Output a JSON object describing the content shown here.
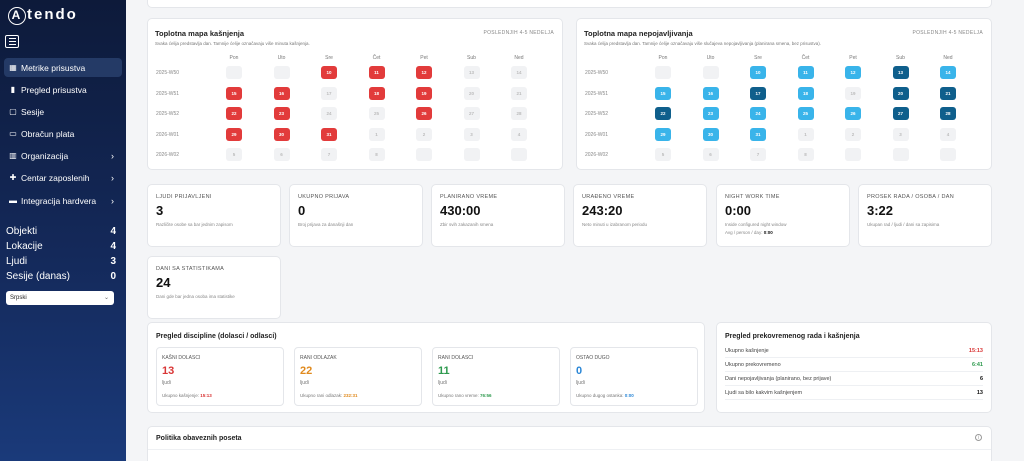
{
  "app": {
    "logo_text": "tendo",
    "logo_initial": "A"
  },
  "sidebar": {
    "items": [
      {
        "label": "Metrike prisustva",
        "icon": "calendar-icon",
        "glyph": "▦",
        "active": true,
        "chevron": false
      },
      {
        "label": "Pregled prisustva",
        "icon": "bar-chart-icon",
        "glyph": "▮",
        "active": false,
        "chevron": false
      },
      {
        "label": "Sesije",
        "icon": "calendar-icon",
        "glyph": "▢",
        "active": false,
        "chevron": false
      },
      {
        "label": "Obračun plata",
        "icon": "monitor-icon",
        "glyph": "▭",
        "active": false,
        "chevron": false
      },
      {
        "label": "Organizacija",
        "icon": "building-icon",
        "glyph": "▥",
        "active": false,
        "chevron": true
      },
      {
        "label": "Centar zaposlenih",
        "icon": "people-icon",
        "glyph": "✚",
        "active": false,
        "chevron": true
      },
      {
        "label": "Integracija hardvera",
        "icon": "hardware-icon",
        "glyph": "▬",
        "active": false,
        "chevron": true
      }
    ],
    "counts": [
      {
        "label": "Objekti",
        "value": "4"
      },
      {
        "label": "Lokacije",
        "value": "4"
      },
      {
        "label": "Ljudi",
        "value": "3"
      },
      {
        "label": "Sesije (danas)",
        "value": "0"
      }
    ],
    "language": "Srpski"
  },
  "heatmaps": [
    {
      "title": "Toplotna mapa kašnjenja",
      "subtitle": "Svaka ćelija predstavlja dan. Tamnije ćelije označavaju više minuta kašnjenja.",
      "tag": "POSLEDNJIH 4-5 NEDELJA",
      "days": [
        "Pon",
        "Uto",
        "Sre",
        "Čet",
        "Pet",
        "Sub",
        "Ned"
      ],
      "weeks": [
        {
          "label": "2025-W50",
          "cells": [
            {
              "t": "",
              "c": "#f1f2f4",
              "f": "#bbb"
            },
            {
              "t": "",
              "c": "#f1f2f4",
              "f": "#bbb"
            },
            {
              "t": "10",
              "c": "#e23b3b",
              "f": "#fff"
            },
            {
              "t": "11",
              "c": "#e23b3b",
              "f": "#fff"
            },
            {
              "t": "12",
              "c": "#e23b3b",
              "f": "#fff"
            },
            {
              "t": "13",
              "c": "#f1f2f4",
              "f": "#bbb"
            },
            {
              "t": "14",
              "c": "#f1f2f4",
              "f": "#bbb"
            }
          ]
        },
        {
          "label": "2025-W51",
          "cells": [
            {
              "t": "15",
              "c": "#e23b3b",
              "f": "#fff"
            },
            {
              "t": "16",
              "c": "#e23b3b",
              "f": "#fff"
            },
            {
              "t": "17",
              "c": "#f1f2f4",
              "f": "#bbb"
            },
            {
              "t": "18",
              "c": "#e23b3b",
              "f": "#fff"
            },
            {
              "t": "19",
              "c": "#e23b3b",
              "f": "#fff"
            },
            {
              "t": "20",
              "c": "#f1f2f4",
              "f": "#bbb"
            },
            {
              "t": "21",
              "c": "#f1f2f4",
              "f": "#bbb"
            }
          ]
        },
        {
          "label": "2025-W52",
          "cells": [
            {
              "t": "22",
              "c": "#e23b3b",
              "f": "#fff"
            },
            {
              "t": "23",
              "c": "#e23b3b",
              "f": "#fff"
            },
            {
              "t": "24",
              "c": "#f1f2f4",
              "f": "#bbb"
            },
            {
              "t": "25",
              "c": "#f1f2f4",
              "f": "#bbb"
            },
            {
              "t": "26",
              "c": "#e23b3b",
              "f": "#fff"
            },
            {
              "t": "27",
              "c": "#f1f2f4",
              "f": "#bbb"
            },
            {
              "t": "28",
              "c": "#f1f2f4",
              "f": "#bbb"
            }
          ]
        },
        {
          "label": "2026-W01",
          "cells": [
            {
              "t": "29",
              "c": "#e23b3b",
              "f": "#fff"
            },
            {
              "t": "30",
              "c": "#e23b3b",
              "f": "#fff"
            },
            {
              "t": "31",
              "c": "#e23b3b",
              "f": "#fff"
            },
            {
              "t": "1",
              "c": "#f1f2f4",
              "f": "#bbb"
            },
            {
              "t": "2",
              "c": "#f1f2f4",
              "f": "#bbb"
            },
            {
              "t": "3",
              "c": "#f1f2f4",
              "f": "#bbb"
            },
            {
              "t": "4",
              "c": "#f1f2f4",
              "f": "#bbb"
            }
          ]
        },
        {
          "label": "2026-W02",
          "cells": [
            {
              "t": "5",
              "c": "#f1f2f4",
              "f": "#bbb"
            },
            {
              "t": "6",
              "c": "#f1f2f4",
              "f": "#bbb"
            },
            {
              "t": "7",
              "c": "#f1f2f4",
              "f": "#bbb"
            },
            {
              "t": "8",
              "c": "#f1f2f4",
              "f": "#bbb"
            },
            {
              "t": "",
              "c": "#f1f2f4",
              "f": "#bbb"
            },
            {
              "t": "",
              "c": "#f1f2f4",
              "f": "#bbb"
            },
            {
              "t": "",
              "c": "#f1f2f4",
              "f": "#bbb"
            }
          ]
        }
      ]
    },
    {
      "title": "Toplotna mapa nepojavljivanja",
      "subtitle": "Svaka ćelija predstavlja dan. Tamnije ćelije označavaju više slučajeva nepojavljivanja (planirana smena, bez prisustva).",
      "tag": "POSLEDNJIH 4-5 NEDELJA",
      "days": [
        "Pon",
        "Uto",
        "Sre",
        "Čet",
        "Pet",
        "Sub",
        "Ned"
      ],
      "weeks": [
        {
          "label": "2025-W50",
          "cells": [
            {
              "t": "",
              "c": "#f1f2f4",
              "f": "#bbb"
            },
            {
              "t": "",
              "c": "#f1f2f4",
              "f": "#bbb"
            },
            {
              "t": "10",
              "c": "#39b4ea",
              "f": "#fff"
            },
            {
              "t": "11",
              "c": "#39b4ea",
              "f": "#fff"
            },
            {
              "t": "12",
              "c": "#39b4ea",
              "f": "#fff"
            },
            {
              "t": "13",
              "c": "#0f5f8c",
              "f": "#fff"
            },
            {
              "t": "14",
              "c": "#39b4ea",
              "f": "#fff"
            }
          ]
        },
        {
          "label": "2025-W51",
          "cells": [
            {
              "t": "15",
              "c": "#39b4ea",
              "f": "#fff"
            },
            {
              "t": "16",
              "c": "#39b4ea",
              "f": "#fff"
            },
            {
              "t": "17",
              "c": "#0f5f8c",
              "f": "#fff"
            },
            {
              "t": "18",
              "c": "#39b4ea",
              "f": "#fff"
            },
            {
              "t": "19",
              "c": "#f1f2f4",
              "f": "#bbb"
            },
            {
              "t": "20",
              "c": "#0f5f8c",
              "f": "#fff"
            },
            {
              "t": "21",
              "c": "#0f5f8c",
              "f": "#fff"
            }
          ]
        },
        {
          "label": "2025-W52",
          "cells": [
            {
              "t": "22",
              "c": "#0f5f8c",
              "f": "#fff"
            },
            {
              "t": "23",
              "c": "#39b4ea",
              "f": "#fff"
            },
            {
              "t": "24",
              "c": "#39b4ea",
              "f": "#fff"
            },
            {
              "t": "25",
              "c": "#39b4ea",
              "f": "#fff"
            },
            {
              "t": "26",
              "c": "#39b4ea",
              "f": "#fff"
            },
            {
              "t": "27",
              "c": "#0f5f8c",
              "f": "#fff"
            },
            {
              "t": "28",
              "c": "#0f5f8c",
              "f": "#fff"
            }
          ]
        },
        {
          "label": "2026-W01",
          "cells": [
            {
              "t": "29",
              "c": "#39b4ea",
              "f": "#fff"
            },
            {
              "t": "30",
              "c": "#39b4ea",
              "f": "#fff"
            },
            {
              "t": "31",
              "c": "#39b4ea",
              "f": "#fff"
            },
            {
              "t": "1",
              "c": "#f1f2f4",
              "f": "#bbb"
            },
            {
              "t": "2",
              "c": "#f1f2f4",
              "f": "#bbb"
            },
            {
              "t": "3",
              "c": "#f1f2f4",
              "f": "#bbb"
            },
            {
              "t": "4",
              "c": "#f1f2f4",
              "f": "#bbb"
            }
          ]
        },
        {
          "label": "2026-W02",
          "cells": [
            {
              "t": "5",
              "c": "#f1f2f4",
              "f": "#bbb"
            },
            {
              "t": "6",
              "c": "#f1f2f4",
              "f": "#bbb"
            },
            {
              "t": "7",
              "c": "#f1f2f4",
              "f": "#bbb"
            },
            {
              "t": "8",
              "c": "#f1f2f4",
              "f": "#bbb"
            },
            {
              "t": "",
              "c": "#f1f2f4",
              "f": "#bbb"
            },
            {
              "t": "",
              "c": "#f1f2f4",
              "f": "#bbb"
            },
            {
              "t": "",
              "c": "#f1f2f4",
              "f": "#bbb"
            }
          ]
        }
      ]
    }
  ],
  "stats": [
    {
      "label": "LJUDI PRIJAVLJENI",
      "value": "3",
      "desc": "Različite osobe sa bar jednim zapisom",
      "extra_label": "",
      "extra_value": ""
    },
    {
      "label": "UKUPNO PRIJAVA",
      "value": "0",
      "desc": "Broj prijava za današnji dan",
      "extra_label": "",
      "extra_value": ""
    },
    {
      "label": "PLANIRANO VREME",
      "value": "430:00",
      "desc": "Zbir svih zakazanih smena",
      "extra_label": "",
      "extra_value": ""
    },
    {
      "label": "URAĐENO VREME",
      "value": "243:20",
      "desc": "Neto minuti u izabranom periodu",
      "extra_label": "",
      "extra_value": ""
    },
    {
      "label": "NIGHT WORK TIME",
      "value": "0:00",
      "desc": "Inside configured night window",
      "extra_label": "Avg / person / day: ",
      "extra_value": "0:00"
    },
    {
      "label": "PROSEK RADA / OSOBA / DAN",
      "value": "3:22",
      "desc": "Ukupan rad / ljudi / dani sa zapisima",
      "extra_label": "",
      "extra_value": ""
    },
    {
      "label": "DANI SA STATISTIKAMA",
      "value": "24",
      "desc": "Dani gde bar jedna osoba ima statistike",
      "extra_label": "",
      "extra_value": ""
    }
  ],
  "discipline": {
    "title": "Pregled discipline (dolasci / odlasci)",
    "items": [
      {
        "label": "KAŠNI DOLASCI",
        "value": "13",
        "unit": "ljudi",
        "extra_label": "Ukupno kašnjenje: ",
        "extra_value": "15:13",
        "color": "#d93636"
      },
      {
        "label": "RANI ODLAZAK",
        "value": "22",
        "unit": "ljudi",
        "extra_label": "Ukupno rani odlazak: ",
        "extra_value": "232:31",
        "color": "#e08a1e"
      },
      {
        "label": "RANI DOLASCI",
        "value": "11",
        "unit": "ljudi",
        "extra_label": "Ukupno rano vreme: ",
        "extra_value": "76:56",
        "color": "#2e9a4e"
      },
      {
        "label": "OSTAO DUGO",
        "value": "0",
        "unit": "ljudi",
        "extra_label": "Ukupno dugog ostanka: ",
        "extra_value": "0:00",
        "color": "#2a86d6"
      }
    ]
  },
  "overtime": {
    "title": "Pregled prekovremenog rada i kašnjenja",
    "rows": [
      {
        "label": "Ukupno kašnjenje",
        "value": "15:13",
        "color": "#d93636"
      },
      {
        "label": "Ukupno prekovremeno",
        "value": "6:41",
        "color": "#2e9a4e"
      },
      {
        "label": "Dani nepojavljivanja (planirano, bez prijave)",
        "value": "6",
        "color": "#111"
      },
      {
        "label": "Ljudi sa bilo kakvim kašnjenjem",
        "value": "13",
        "color": "#111"
      }
    ]
  },
  "policy": {
    "title": "Politika obaveznih poseta"
  }
}
